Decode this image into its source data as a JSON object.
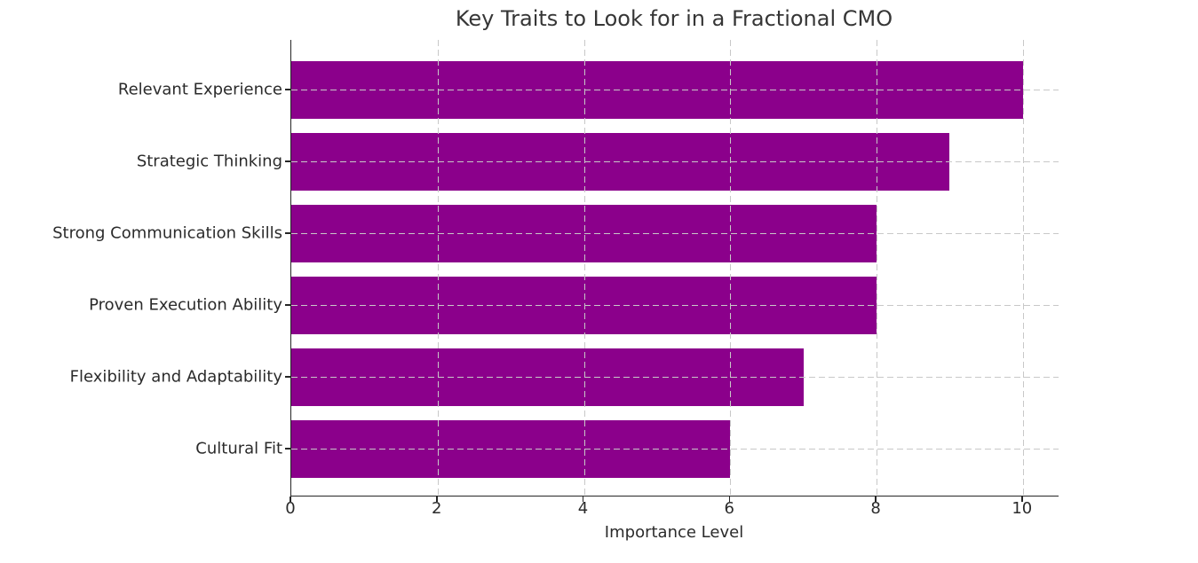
{
  "chart_data": {
    "type": "bar",
    "orientation": "horizontal",
    "title": "Key Traits to Look for in a Fractional CMO",
    "xlabel": "Importance Level",
    "ylabel": "",
    "categories": [
      "Relevant Experience",
      "Strategic Thinking",
      "Strong Communication Skills",
      "Proven Execution Ability",
      "Flexibility and Adaptability",
      "Cultural Fit"
    ],
    "values": [
      10,
      9,
      8,
      8,
      7,
      6
    ],
    "xticks": [
      0,
      2,
      4,
      6,
      8,
      10
    ],
    "xtick_labels": [
      "0",
      "2",
      "4",
      "6",
      "8",
      "10"
    ],
    "xlim": [
      0,
      10.5
    ],
    "grid": true,
    "grid_style": "dashed",
    "grid_over_bars": true,
    "legend": "none",
    "colors": {
      "bar": "#8B008B",
      "grid": "#c8c8c8",
      "axis": "#262626",
      "text": "#2b2b2b",
      "title_text": "#363636",
      "background": "#ffffff"
    }
  }
}
